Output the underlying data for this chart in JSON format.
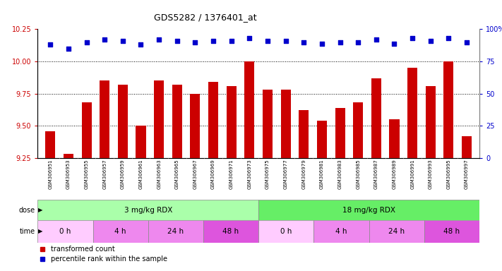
{
  "title": "GDS5282 / 1376401_at",
  "samples": [
    "GSM306951",
    "GSM306953",
    "GSM306955",
    "GSM306957",
    "GSM306959",
    "GSM306961",
    "GSM306963",
    "GSM306965",
    "GSM306967",
    "GSM306969",
    "GSM306971",
    "GSM306973",
    "GSM306975",
    "GSM306977",
    "GSM306979",
    "GSM306981",
    "GSM306983",
    "GSM306985",
    "GSM306987",
    "GSM306989",
    "GSM306991",
    "GSM306993",
    "GSM306995",
    "GSM306997"
  ],
  "bar_values": [
    9.46,
    9.28,
    9.68,
    9.85,
    9.82,
    9.5,
    9.85,
    9.82,
    9.75,
    9.84,
    9.81,
    10.0,
    9.78,
    9.78,
    9.62,
    9.54,
    9.64,
    9.68,
    9.87,
    9.55,
    9.95,
    9.81,
    10.0,
    9.42
  ],
  "percentile_values": [
    88,
    85,
    90,
    92,
    91,
    88,
    92,
    91,
    90,
    91,
    91,
    93,
    91,
    91,
    90,
    89,
    90,
    90,
    92,
    89,
    93,
    91,
    93,
    90
  ],
  "bar_color": "#cc0000",
  "dot_color": "#0000cc",
  "ylim_left": [
    9.25,
    10.25
  ],
  "ylim_right": [
    0,
    100
  ],
  "yticks_left": [
    9.25,
    9.5,
    9.75,
    10.0,
    10.25
  ],
  "yticks_right": [
    0,
    25,
    50,
    75,
    100
  ],
  "ytick_right_labels": [
    "0",
    "25",
    "50",
    "75",
    "100%"
  ],
  "gridlines": [
    9.5,
    9.75,
    10.0
  ],
  "dose_groups": [
    {
      "label": "3 mg/kg RDX",
      "start": 0,
      "end": 12,
      "color": "#aaffaa"
    },
    {
      "label": "18 mg/kg RDX",
      "start": 12,
      "end": 24,
      "color": "#66ee66"
    }
  ],
  "time_groups": [
    {
      "label": "0 h",
      "start": 0,
      "end": 3,
      "color": "#ffccff"
    },
    {
      "label": "4 h",
      "start": 3,
      "end": 6,
      "color": "#ee88ee"
    },
    {
      "label": "24 h",
      "start": 6,
      "end": 9,
      "color": "#ee88ee"
    },
    {
      "label": "48 h",
      "start": 9,
      "end": 12,
      "color": "#dd55dd"
    },
    {
      "label": "0 h",
      "start": 12,
      "end": 15,
      "color": "#ffccff"
    },
    {
      "label": "4 h",
      "start": 15,
      "end": 18,
      "color": "#ee88ee"
    },
    {
      "label": "24 h",
      "start": 18,
      "end": 21,
      "color": "#ee88ee"
    },
    {
      "label": "48 h",
      "start": 21,
      "end": 24,
      "color": "#dd55dd"
    }
  ],
  "legend_items": [
    {
      "color": "#cc0000",
      "label": "transformed count"
    },
    {
      "color": "#0000cc",
      "label": "percentile rank within the sample"
    }
  ],
  "bg_color": "#ffffff",
  "xticklabel_bg": "#dddddd",
  "plot_bg_color": "#ffffff"
}
